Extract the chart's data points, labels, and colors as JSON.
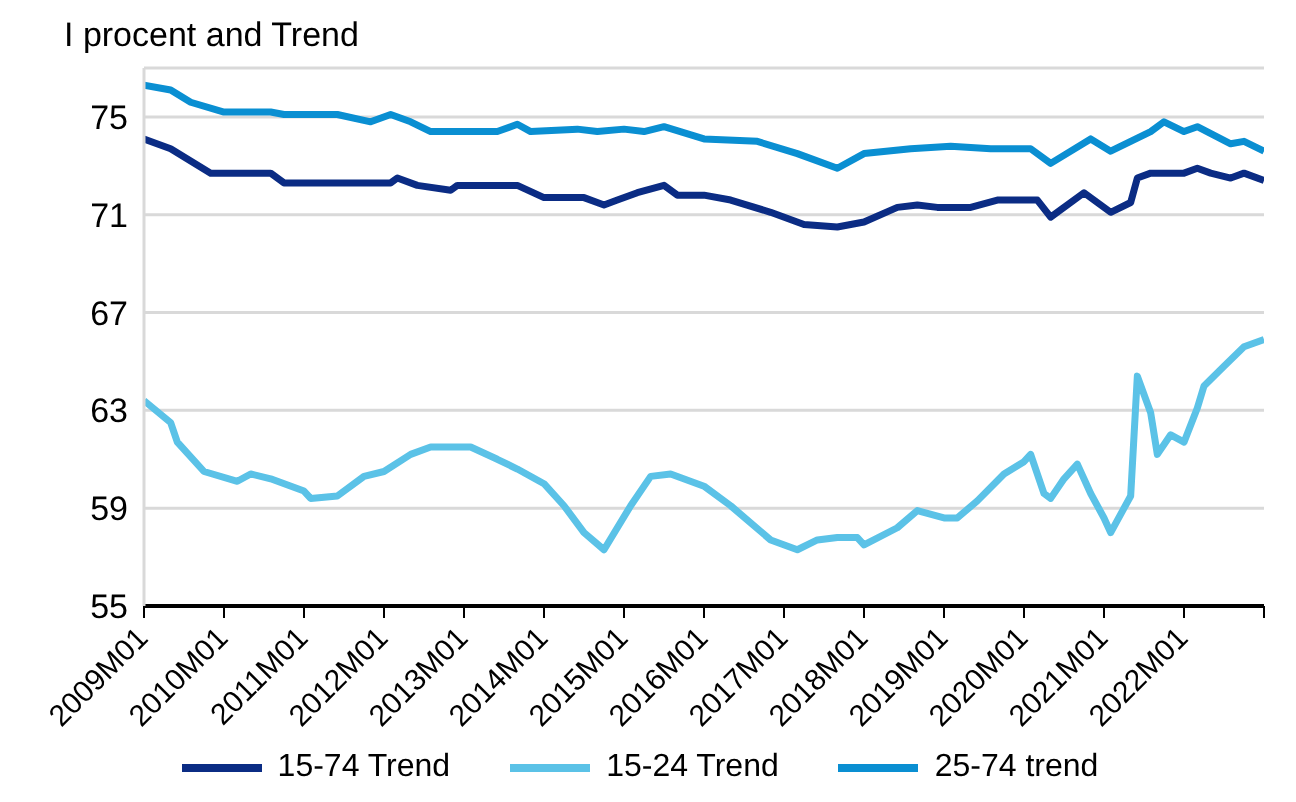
{
  "chart_data": {
    "type": "line",
    "title": "I procent and Trend",
    "xlim": [
      "2009-01",
      "2023-01"
    ],
    "xticks": [
      {
        "value": "2009-01",
        "label": "2009M01"
      },
      {
        "value": "2010-01",
        "label": "2010M01"
      },
      {
        "value": "2011-01",
        "label": "2011M01"
      },
      {
        "value": "2012-01",
        "label": "2012M01"
      },
      {
        "value": "2013-01",
        "label": "2013M01"
      },
      {
        "value": "2014-01",
        "label": "2014M01"
      },
      {
        "value": "2015-01",
        "label": "2015M01"
      },
      {
        "value": "2016-01",
        "label": "2016M01"
      },
      {
        "value": "2017-01",
        "label": "2017M01"
      },
      {
        "value": "2018-01",
        "label": "2018M01"
      },
      {
        "value": "2019-01",
        "label": "2019M01"
      },
      {
        "value": "2020-01",
        "label": "2020M01"
      },
      {
        "value": "2021-01",
        "label": "2021M01"
      },
      {
        "value": "2022-01",
        "label": "2022M01"
      },
      {
        "value": "2023-01",
        "label": null
      }
    ],
    "ylim": [
      55,
      77
    ],
    "yticks": [
      55,
      59,
      63,
      67,
      71,
      75
    ],
    "grid": "y",
    "legend": "bottom",
    "marker": "none",
    "line_style": "solid",
    "series": [
      {
        "name": "15-74 Trend",
        "color": "#0b2c84",
        "x": [
          "2009-01",
          "2009-05",
          "2009-08",
          "2009-11",
          "2010-08",
          "2010-10",
          "2012-02",
          "2012-03",
          "2012-06",
          "2012-11",
          "2012-12",
          "2013-09",
          "2014-01",
          "2014-07",
          "2014-10",
          "2014-12",
          "2015-03",
          "2015-07",
          "2015-09",
          "2016-01",
          "2016-05",
          "2016-11",
          "2017-04",
          "2017-09",
          "2018-01",
          "2018-06",
          "2018-09",
          "2018-12",
          "2019-05",
          "2019-09",
          "2020-03",
          "2020-05",
          "2020-10",
          "2021-02",
          "2021-05",
          "2021-06",
          "2021-08",
          "2022-01",
          "2022-03",
          "2022-05",
          "2022-08",
          "2022-10",
          "2023-01"
        ],
        "values": [
          74.1,
          73.7,
          73.2,
          72.7,
          72.7,
          72.3,
          72.3,
          72.5,
          72.2,
          72.0,
          72.2,
          72.2,
          71.7,
          71.7,
          71.4,
          71.6,
          71.9,
          72.2,
          71.8,
          71.8,
          71.6,
          71.1,
          70.6,
          70.5,
          70.7,
          71.3,
          71.4,
          71.3,
          71.3,
          71.6,
          71.6,
          70.9,
          71.9,
          71.1,
          71.5,
          72.5,
          72.7,
          72.7,
          72.9,
          72.7,
          72.5,
          72.7,
          72.4
        ]
      },
      {
        "name": "15-24 Trend",
        "color": "#5bc2e7",
        "x": [
          "2009-01",
          "2009-05",
          "2009-06",
          "2009-10",
          "2010-03",
          "2010-05",
          "2010-08",
          "2011-01",
          "2011-02",
          "2011-06",
          "2011-10",
          "2012-01",
          "2012-05",
          "2012-08",
          "2013-02",
          "2013-06",
          "2013-09",
          "2014-01",
          "2014-04",
          "2014-07",
          "2014-10",
          "2015-02",
          "2015-05",
          "2015-08",
          "2016-01",
          "2016-05",
          "2016-08",
          "2016-11",
          "2017-03",
          "2017-06",
          "2017-09",
          "2017-12",
          "2018-01",
          "2018-06",
          "2018-09",
          "2019-01",
          "2019-03",
          "2019-06",
          "2019-10",
          "2020-01",
          "2020-02",
          "2020-04",
          "2020-05",
          "2020-07",
          "2020-09",
          "2020-11",
          "2021-01",
          "2021-02",
          "2021-05",
          "2021-06",
          "2021-08",
          "2021-09",
          "2021-11",
          "2022-01",
          "2022-03",
          "2022-04",
          "2022-07",
          "2022-10",
          "2023-01"
        ],
        "values": [
          63.4,
          62.5,
          61.7,
          60.5,
          60.1,
          60.4,
          60.2,
          59.7,
          59.4,
          59.5,
          60.3,
          60.5,
          61.2,
          61.5,
          61.5,
          61.0,
          60.6,
          60.0,
          59.1,
          58.0,
          57.3,
          59.1,
          60.3,
          60.4,
          59.9,
          59.1,
          58.4,
          57.7,
          57.3,
          57.7,
          57.8,
          57.8,
          57.5,
          58.2,
          58.9,
          58.6,
          58.6,
          59.3,
          60.4,
          60.9,
          61.2,
          59.6,
          59.4,
          60.2,
          60.8,
          59.6,
          58.6,
          58.0,
          59.5,
          64.4,
          62.9,
          61.2,
          62.0,
          61.7,
          63.1,
          64.0,
          64.8,
          65.6,
          65.9
        ]
      },
      {
        "name": "25-74 trend",
        "color": "#0a8fd2",
        "x": [
          "2009-01",
          "2009-05",
          "2009-08",
          "2010-01",
          "2010-08",
          "2010-10",
          "2011-06",
          "2011-11",
          "2012-02",
          "2012-05",
          "2012-08",
          "2013-06",
          "2013-09",
          "2013-11",
          "2014-06",
          "2014-09",
          "2015-01",
          "2015-04",
          "2015-07",
          "2016-01",
          "2016-09",
          "2017-03",
          "2017-09",
          "2018-01",
          "2018-08",
          "2019-02",
          "2019-08",
          "2020-02",
          "2020-05",
          "2020-11",
          "2021-02",
          "2021-08",
          "2021-10",
          "2022-01",
          "2022-03",
          "2022-08",
          "2022-10",
          "2023-01"
        ],
        "values": [
          76.3,
          76.1,
          75.6,
          75.2,
          75.2,
          75.1,
          75.1,
          74.8,
          75.1,
          74.8,
          74.4,
          74.4,
          74.7,
          74.4,
          74.5,
          74.4,
          74.5,
          74.4,
          74.6,
          74.1,
          74.0,
          73.5,
          72.9,
          73.5,
          73.7,
          73.8,
          73.7,
          73.7,
          73.1,
          74.1,
          73.6,
          74.4,
          74.8,
          74.4,
          74.6,
          73.9,
          74.0,
          73.6
        ]
      }
    ]
  }
}
